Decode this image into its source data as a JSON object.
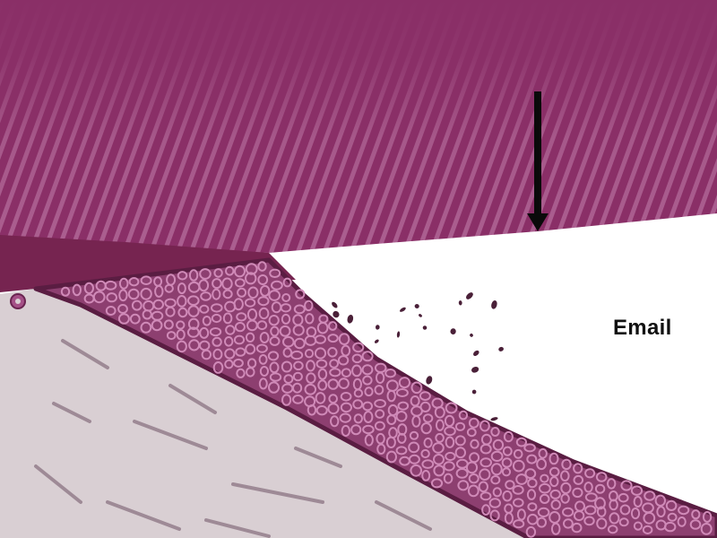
{
  "label": {
    "text": "Email"
  },
  "pointer": {
    "icon": "down-arrow-icon"
  },
  "palette": {
    "enamel": "#8a2f67",
    "enamel_stripe": "#b56f9d",
    "enamel_band": "#762450",
    "cementum": "#8d3f70",
    "cementum_cell": "#d08ab8",
    "cementum_outline": "#5a1d42",
    "dentin": "#d9cfd3",
    "dentin_mark": "#4a2038",
    "dentin_line": "#9e8a96",
    "arrow": "#0a0a0a"
  }
}
